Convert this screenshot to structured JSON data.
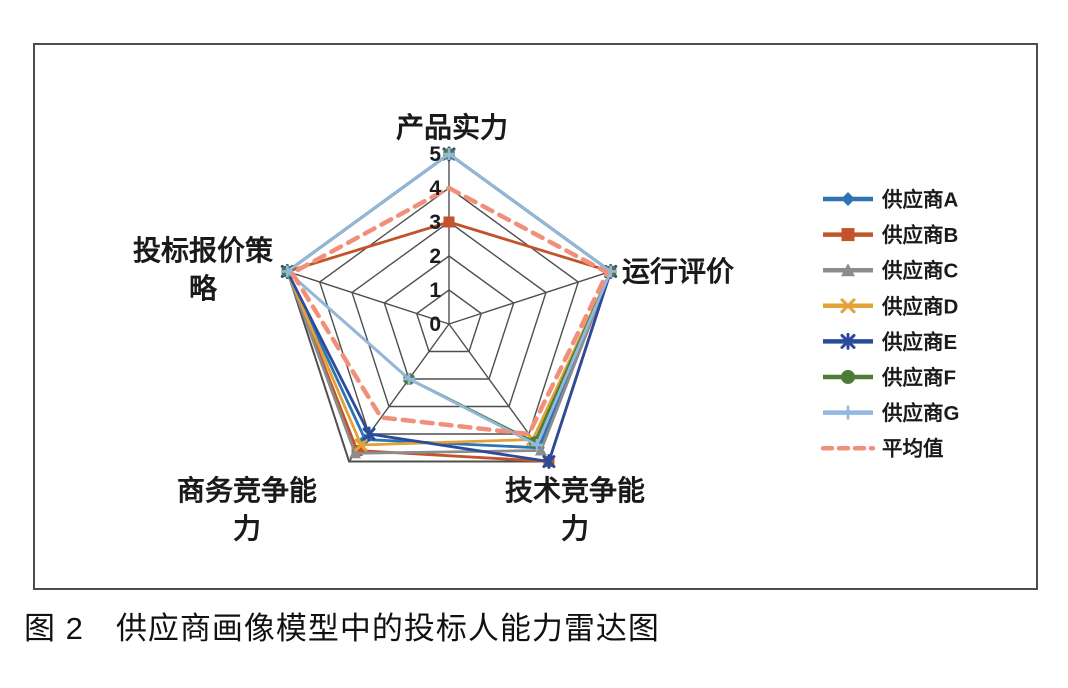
{
  "caption": "图 2　供应商画像模型中的投标人能力雷达图",
  "chart_data": {
    "type": "radar",
    "title": "",
    "max": 5,
    "ticks": [
      "0",
      "1",
      "2",
      "3",
      "4",
      "5"
    ],
    "grid": true,
    "legend_position": "right",
    "axes": [
      {
        "label": "产品实力",
        "lines": [
          "产品实力"
        ]
      },
      {
        "label": "运行评价",
        "lines": [
          "运行评价"
        ]
      },
      {
        "label": "技术竞争能力",
        "lines": [
          "技术竞争能",
          "力"
        ]
      },
      {
        "label": "商务竞争能力",
        "lines": [
          "商务竞争能",
          "力"
        ]
      },
      {
        "label": "投标报价策略",
        "lines": [
          "投标报价策",
          "略"
        ]
      }
    ],
    "series": [
      {
        "name": "供应商A",
        "color": "#2E74B5",
        "marker": "diamond",
        "dashed": false,
        "values": [
          5,
          5,
          4.5,
          4.2,
          5
        ]
      },
      {
        "name": "供应商B",
        "color": "#C3532A",
        "marker": "square",
        "dashed": false,
        "values": [
          3,
          5,
          5.0,
          4.6,
          5
        ]
      },
      {
        "name": "供应商C",
        "color": "#8C8C8C",
        "marker": "triangle",
        "dashed": false,
        "values": [
          5,
          5,
          4.6,
          4.7,
          5
        ]
      },
      {
        "name": "供应商D",
        "color": "#E2A236",
        "marker": "x",
        "dashed": false,
        "values": [
          5,
          5,
          4.2,
          4.4,
          5
        ]
      },
      {
        "name": "供应商E",
        "color": "#2B4C9B",
        "marker": "asterisk",
        "dashed": false,
        "values": [
          5,
          5,
          5.0,
          4.0,
          5
        ]
      },
      {
        "name": "供应商F",
        "color": "#4C7D35",
        "marker": "circle",
        "dashed": false,
        "values": [
          5,
          5,
          4.3,
          2.0,
          5
        ]
      },
      {
        "name": "供应商G",
        "color": "#92B8DF",
        "marker": "plus",
        "dashed": false,
        "values": [
          5,
          5,
          4.4,
          2.0,
          5
        ]
      },
      {
        "name": "平均值",
        "color": "#F0907A",
        "marker": "none",
        "dashed": true,
        "values": [
          4,
          4.9,
          4.0,
          3.4,
          4.85
        ]
      }
    ],
    "colors": {
      "grid": "#4F4F4F",
      "axis_text": "#1a1a1a",
      "frame": "#4d4d4d"
    }
  }
}
